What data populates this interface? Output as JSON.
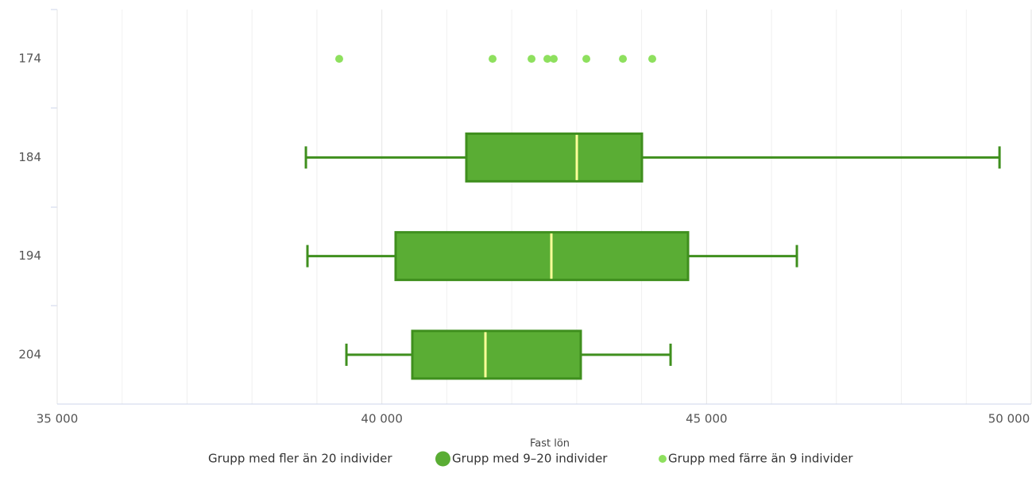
{
  "chart_data": {
    "type": "boxplot",
    "x_label": "Fast lön",
    "categories": [
      "174",
      "184",
      "194",
      "204"
    ],
    "xlim": [
      35000,
      50000
    ],
    "xticks": [
      {
        "value": 35000,
        "label": "35 000"
      },
      {
        "value": 40000,
        "label": "40 000"
      },
      {
        "value": 45000,
        "label": "45 000"
      },
      {
        "value": 50000,
        "label": "50 000"
      }
    ],
    "xminorticks": [
      36000,
      37000,
      38000,
      39000,
      41000,
      42000,
      43000,
      44000,
      46000,
      47000,
      48000,
      49000
    ],
    "grid": true,
    "legend": "bottom",
    "series": [
      {
        "name": "Grupp med fler än 20 individer"
      },
      {
        "name": "Grupp med 9–20 individer",
        "color": "#5aad34",
        "line_color": "#3f8f1e",
        "median_color": "#ffff99",
        "low": [
          null,
          38830,
          38854,
          39454
        ],
        "q1": [
          null,
          41301,
          40212,
          40469
        ],
        "median": [
          null,
          43002,
          42610,
          41595
        ],
        "q3": [
          null,
          44005,
          44715,
          43063
        ],
        "high": [
          null,
          49512,
          46391,
          44446
        ]
      },
      {
        "name": "Grupp med färre än 9 individer",
        "color": "#8ee05e",
        "values": [
          [
            39343,
            41705,
            42305,
            42549,
            42647,
            43149,
            43712,
            44164
          ],
          null,
          null,
          null
        ]
      }
    ]
  }
}
